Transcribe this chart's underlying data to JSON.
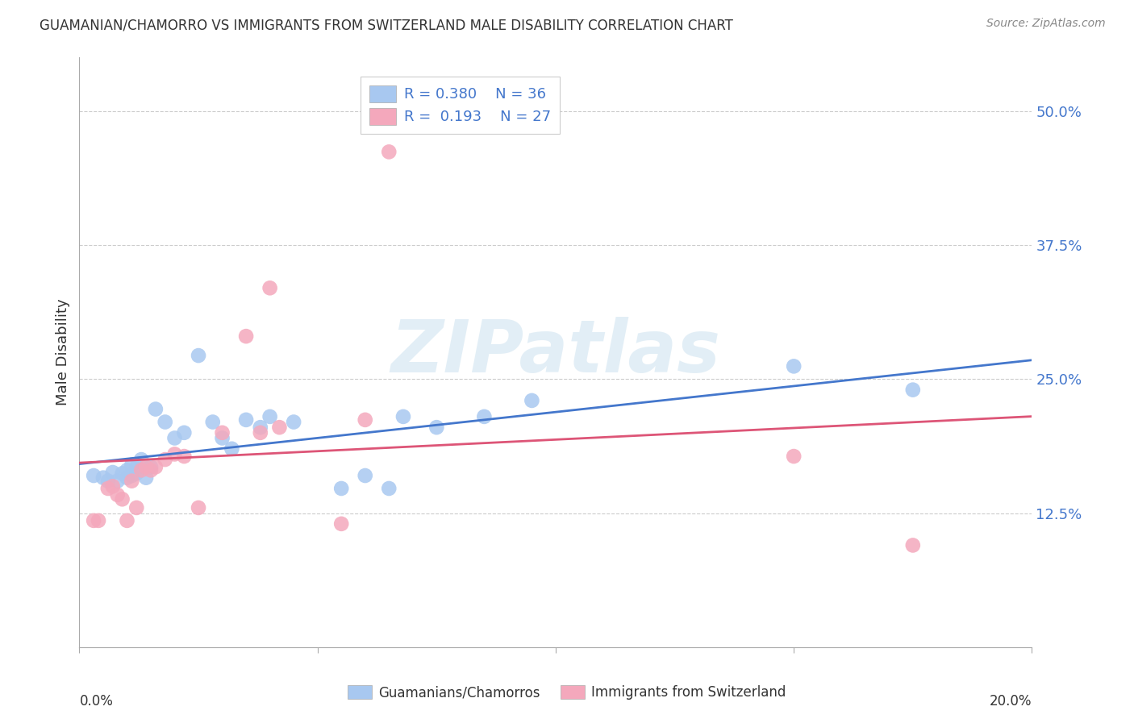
{
  "title": "GUAMANIAN/CHAMORRO VS IMMIGRANTS FROM SWITZERLAND MALE DISABILITY CORRELATION CHART",
  "source": "Source: ZipAtlas.com",
  "ylabel": "Male Disability",
  "y_ticks": [
    0.125,
    0.25,
    0.375,
    0.5
  ],
  "y_tick_labels": [
    "12.5%",
    "25.0%",
    "37.5%",
    "50.0%"
  ],
  "xlim": [
    0.0,
    0.2
  ],
  "ylim": [
    0.0,
    0.55
  ],
  "blue_R": 0.38,
  "blue_N": 36,
  "pink_R": 0.193,
  "pink_N": 27,
  "blue_color": "#A8C8F0",
  "pink_color": "#F4A8BC",
  "blue_line_color": "#4477CC",
  "pink_line_color": "#DD5577",
  "legend_label_blue": "Guamanians/Chamorros",
  "legend_label_pink": "Immigrants from Switzerland",
  "watermark": "ZIPatlas",
  "blue_x": [
    0.003,
    0.005,
    0.006,
    0.007,
    0.008,
    0.009,
    0.01,
    0.01,
    0.011,
    0.011,
    0.012,
    0.012,
    0.013,
    0.014,
    0.015,
    0.016,
    0.018,
    0.02,
    0.022,
    0.025,
    0.028,
    0.03,
    0.032,
    0.035,
    0.038,
    0.04,
    0.045,
    0.055,
    0.06,
    0.065,
    0.068,
    0.075,
    0.085,
    0.095,
    0.15,
    0.175
  ],
  "blue_y": [
    0.16,
    0.158,
    0.155,
    0.163,
    0.155,
    0.162,
    0.158,
    0.165,
    0.16,
    0.17,
    0.162,
    0.168,
    0.175,
    0.158,
    0.168,
    0.222,
    0.21,
    0.195,
    0.2,
    0.272,
    0.21,
    0.195,
    0.185,
    0.212,
    0.205,
    0.215,
    0.21,
    0.148,
    0.16,
    0.148,
    0.215,
    0.205,
    0.215,
    0.23,
    0.262,
    0.24
  ],
  "pink_x": [
    0.003,
    0.004,
    0.006,
    0.007,
    0.008,
    0.009,
    0.01,
    0.011,
    0.012,
    0.013,
    0.014,
    0.015,
    0.016,
    0.018,
    0.02,
    0.022,
    0.025,
    0.03,
    0.035,
    0.038,
    0.04,
    0.042,
    0.055,
    0.06,
    0.065,
    0.15,
    0.175
  ],
  "pink_y": [
    0.118,
    0.118,
    0.148,
    0.15,
    0.142,
    0.138,
    0.118,
    0.155,
    0.13,
    0.165,
    0.168,
    0.165,
    0.168,
    0.175,
    0.18,
    0.178,
    0.13,
    0.2,
    0.29,
    0.2,
    0.335,
    0.205,
    0.115,
    0.212,
    0.462,
    0.178,
    0.095
  ]
}
